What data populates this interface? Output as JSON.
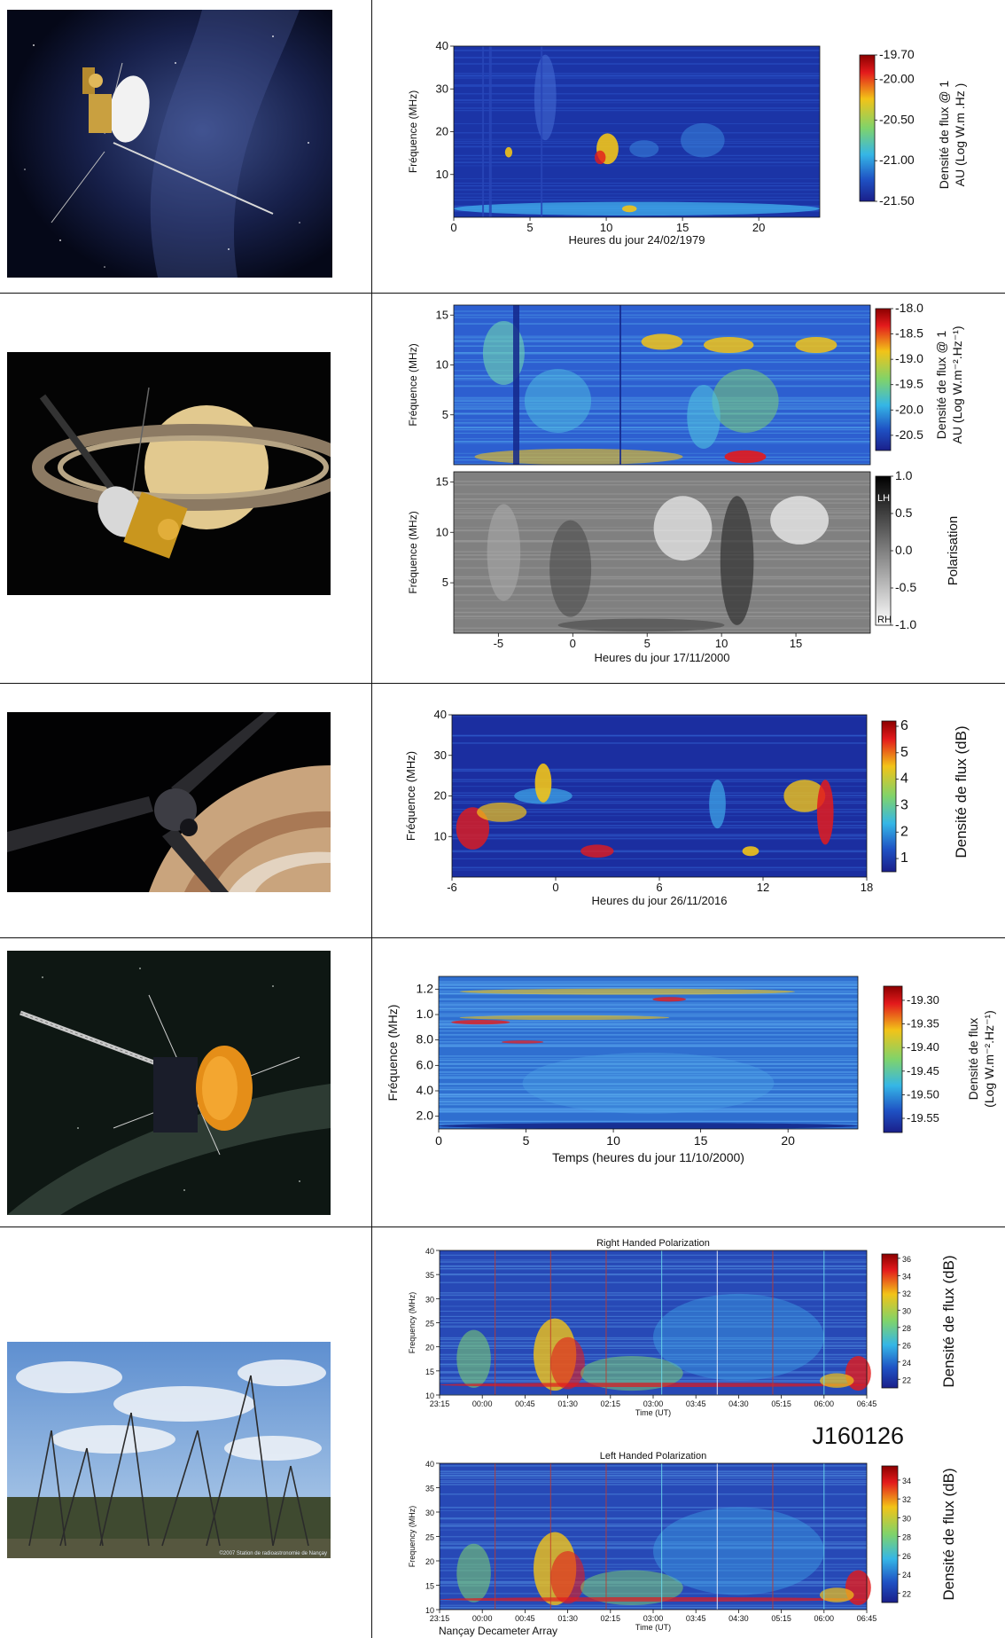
{
  "figure_panels": [
    {
      "id": "voyager",
      "image": "voyager-spacecraft",
      "chart_data": {
        "type": "heatmap",
        "title": "",
        "xlabel": "Heures du jour 24/02/1979",
        "ylabel": "Fréquence (MHz)",
        "xlim": [
          0,
          24
        ],
        "ylim": [
          0,
          40
        ],
        "x_ticks": [
          "0",
          "5",
          "10",
          "15",
          "20"
        ],
        "y_ticks": [
          "10",
          "20",
          "30",
          "40"
        ],
        "colorbar": {
          "label_line1": "Densité de flux @ 1",
          "label_line2": "AU (Log W.m .Hz )",
          "ticks": [
            "-19.70",
            "-20.00",
            "-20.50",
            "-21.00",
            "-21.50"
          ],
          "range": [
            -21.5,
            -19.7
          ],
          "colormap": "jet"
        },
        "colors": {
          "background": "#1f3aa8",
          "emission": "#4fb0e8",
          "hot": "#f0c020"
        }
      }
    },
    {
      "id": "cassini",
      "image": "cassini-spacecraft-saturn",
      "chart_data": [
        {
          "type": "heatmap",
          "title": "",
          "xlabel": "",
          "ylabel": "Fréquence (MHz)",
          "ylim": [
            0,
            16
          ],
          "y_ticks": [
            "15",
            "10",
            "5"
          ],
          "colorbar": {
            "label_line1": "Densité de flux @ 1",
            "label_line2": "AU (Log W.m⁻².Hz⁻¹)",
            "ticks": [
              "-18.0",
              "-18.5",
              "-19.0",
              "-19.5",
              "-20.0",
              "-20.5"
            ],
            "range": [
              -20.8,
              -18.0
            ],
            "colormap": "jet"
          }
        },
        {
          "type": "heatmap",
          "title": "",
          "xlabel": "Heures du jour 17/11/2000",
          "ylabel": "Fréquence (MHz)",
          "xlim": [
            -8,
            20
          ],
          "ylim": [
            0,
            16
          ],
          "x_ticks": [
            "-5",
            "0",
            "5",
            "10",
            "15"
          ],
          "y_ticks": [
            "15",
            "10",
            "5"
          ],
          "colorbar": {
            "label": "Polarisation",
            "ticks": [
              "1.0",
              "0.5",
              "0.0",
              "-0.5",
              "-1.0"
            ],
            "top_tag": "LH",
            "bottom_tag": "RH",
            "range": [
              -1.0,
              1.0
            ],
            "colormap": "gray"
          }
        }
      ]
    },
    {
      "id": "juno",
      "image": "juno-spacecraft-jupiter",
      "chart_data": {
        "type": "heatmap",
        "title": "",
        "xlabel": "Heures du jour 26/11/2016",
        "ylabel": "Fréquence (MHz)",
        "xlim": [
          -6,
          18
        ],
        "ylim": [
          0,
          40
        ],
        "x_ticks": [
          "-6",
          "0",
          "6",
          "12",
          "18"
        ],
        "y_ticks": [
          "10",
          "20",
          "30",
          "40"
        ],
        "colorbar": {
          "label": "Densité de flux (dB)",
          "ticks": [
            "6",
            "5",
            "4",
            "3",
            "2",
            "1"
          ],
          "range": [
            0.5,
            6.2
          ],
          "colormap": "jet"
        }
      }
    },
    {
      "id": "wind",
      "image": "wind-spacecraft",
      "chart_data": {
        "type": "heatmap",
        "title": "",
        "xlabel": "Temps (heures du jour 11/10/2000)",
        "ylabel": "Fréquence (MHz)",
        "xlim": [
          0,
          24
        ],
        "x_ticks": [
          "0",
          "5",
          "10",
          "15",
          "20"
        ],
        "y_ticks": [
          "1.2",
          "1.0",
          "8.0",
          "6.0",
          "4.0",
          "2.0"
        ],
        "colorbar": {
          "label_line1": "Densité de flux",
          "label_line2": "(Log W.m⁻².Hz⁻¹)",
          "ticks": [
            "-19.30",
            "-19.35",
            "-19.40",
            "-19.45",
            "-19.50",
            "-19.55"
          ],
          "range": [
            -19.58,
            -19.27
          ],
          "colormap": "jet"
        }
      }
    },
    {
      "id": "nancay",
      "image": "nancay-decameter-array-antennas",
      "photo_credit": "©2007 Station de radioastronomie de Nançay",
      "caption": "Nançay Decameter Array",
      "observation_id": "J160126",
      "chart_data": [
        {
          "type": "heatmap",
          "title": "Right Handed Polarization",
          "xlabel": "Time (UT)",
          "ylabel": "Frequency (MHz)",
          "ylim": [
            10,
            40
          ],
          "x_ticks": [
            "23:15",
            "00:00",
            "00:45",
            "01:30",
            "02:15",
            "03:00",
            "03:45",
            "04:30",
            "05:15",
            "06:00",
            "06:45"
          ],
          "y_ticks": [
            "40",
            "35",
            "30",
            "25",
            "20",
            "15",
            "10"
          ],
          "colorbar": {
            "label": "Densité de flux (dB)",
            "ticks": [
              "36",
              "34",
              "32",
              "30",
              "28",
              "26",
              "24",
              "22"
            ],
            "range": [
              21,
              36.5
            ],
            "colormap": "jet"
          }
        },
        {
          "type": "heatmap",
          "title": "Left Handed Polarization",
          "xlabel": "Time (UT)",
          "ylabel": "Frequency (MHz)",
          "ylim": [
            10,
            40
          ],
          "x_ticks": [
            "23:15",
            "00:00",
            "00:45",
            "01:30",
            "02:15",
            "03:00",
            "03:45",
            "04:30",
            "05:15",
            "06:00",
            "06:45"
          ],
          "y_ticks": [
            "40",
            "35",
            "30",
            "25",
            "20",
            "15",
            "10"
          ],
          "colorbar": {
            "label": "Densité de flux (dB)",
            "ticks": [
              "34",
              "32",
              "30",
              "28",
              "26",
              "24",
              "22"
            ],
            "range": [
              21,
              35.5
            ],
            "colormap": "jet"
          }
        }
      ]
    }
  ]
}
